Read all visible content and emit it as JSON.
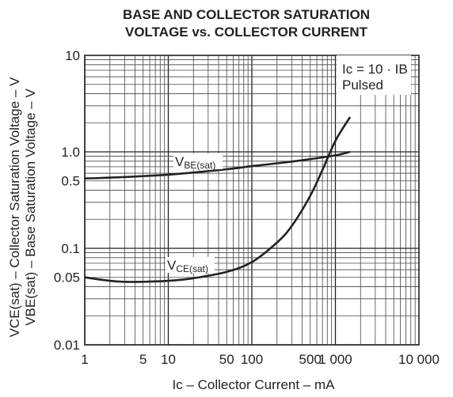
{
  "chart_data": {
    "type": "line",
    "title": "BASE AND COLLECTOR SATURATION",
    "subtitle": "VOLTAGE vs. COLLECTOR CURRENT",
    "xlabel": "Ic – Collector Current – mA",
    "ylabel_line1": "VCE(sat) – Collector Saturation Voltage – V",
    "ylabel_line2": "VBE(sat) – Base Saturation Voltage – V",
    "x_scale": "log",
    "y_scale": "log",
    "xlim": [
      1,
      10000
    ],
    "ylim": [
      0.01,
      10
    ],
    "grid": true,
    "x_ticks": [
      {
        "value": 1,
        "label": "1"
      },
      {
        "value": 5,
        "label": "5"
      },
      {
        "value": 10,
        "label": "10"
      },
      {
        "value": 50,
        "label": "50"
      },
      {
        "value": 100,
        "label": "100"
      },
      {
        "value": 500,
        "label": "500"
      },
      {
        "value": 1000,
        "label": "1 000"
      },
      {
        "value": 10000,
        "label": "10 000"
      }
    ],
    "y_ticks": [
      {
        "value": 10,
        "label": "10"
      },
      {
        "value": 1.0,
        "label": "1.0"
      },
      {
        "value": 0.5,
        "label": "0.5"
      },
      {
        "value": 0.1,
        "label": "0.1"
      },
      {
        "value": 0.05,
        "label": "0.05"
      },
      {
        "value": 0.01,
        "label": "0.01"
      }
    ],
    "condition_box": {
      "line1": "Ic = 10 · IB",
      "line2": "Pulsed"
    },
    "series": [
      {
        "name": "VBE(sat)",
        "x": [
          1,
          2,
          5,
          10,
          20,
          50,
          100,
          200,
          500,
          1000,
          1500
        ],
        "y": [
          0.53,
          0.54,
          0.56,
          0.58,
          0.61,
          0.66,
          0.71,
          0.76,
          0.84,
          0.92,
          1.0
        ]
      },
      {
        "name": "VCE(sat)",
        "x": [
          1,
          2,
          3,
          5,
          10,
          20,
          50,
          100,
          200,
          300,
          500,
          700,
          1000,
          1500
        ],
        "y": [
          0.05,
          0.046,
          0.045,
          0.045,
          0.046,
          0.049,
          0.057,
          0.072,
          0.115,
          0.17,
          0.35,
          0.65,
          1.3,
          2.3
        ]
      }
    ],
    "series_labels": [
      {
        "main": "V",
        "sub": "BE(sat)"
      },
      {
        "main": "V",
        "sub": "CE(sat)"
      }
    ]
  }
}
